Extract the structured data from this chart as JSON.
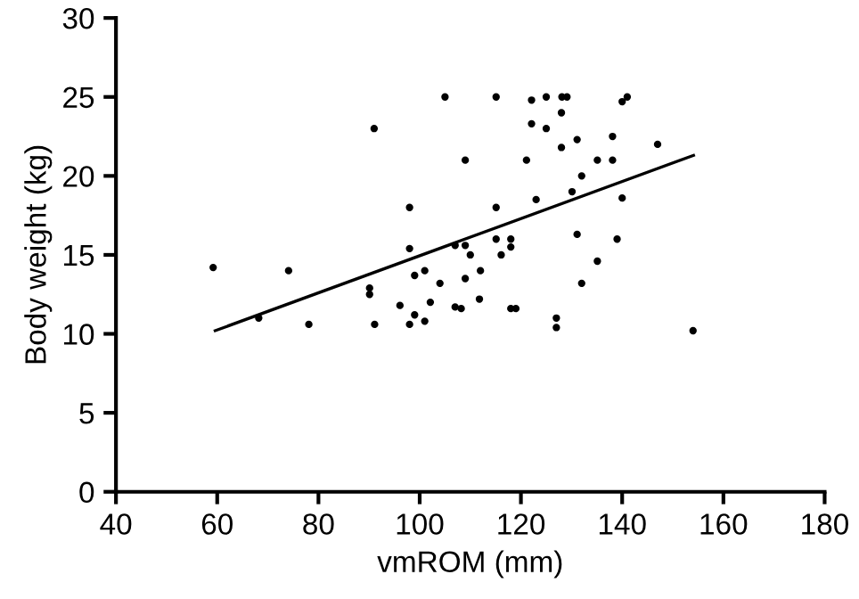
{
  "chart_data": {
    "type": "scatter",
    "xlabel": "vmROM (mm)",
    "ylabel": "Body weight (kg)",
    "xlim": [
      40,
      180
    ],
    "xticks": [
      40,
      60,
      80,
      100,
      120,
      140,
      160,
      180
    ],
    "ylim": [
      0,
      30
    ],
    "yticks": [
      0,
      5,
      10,
      15,
      20,
      25,
      30
    ],
    "grid": false,
    "series": [
      {
        "color": "#000000",
        "marker": "circle",
        "x": [
          59.2,
          74.1,
          91,
          105,
          109,
          98,
          98,
          107,
          109,
          110,
          99,
          101,
          104,
          109,
          112,
          68.2,
          78.1,
          90.1,
          90.1,
          91.1,
          96.1,
          98,
          99,
          101,
          102.1,
          107,
          108.2,
          111.8,
          115.1,
          122.1,
          125,
          128.1,
          129.1,
          128,
          122.1,
          125,
          140,
          141,
          128,
          131.1,
          138.1,
          147,
          121.1,
          135.1,
          138.1,
          132,
          130.1,
          140,
          123,
          115.1,
          115.1,
          118,
          118,
          116.1,
          131.1,
          139,
          135.1,
          132,
          118,
          119,
          127,
          127,
          154
        ],
        "values": [
          14.2,
          14.0,
          23.0,
          25.0,
          21.0,
          18.0,
          15.4,
          15.6,
          15.6,
          15.0,
          13.7,
          14.0,
          13.2,
          13.5,
          14.0,
          11.0,
          10.6,
          12.9,
          12.5,
          10.6,
          11.8,
          10.6,
          11.2,
          10.8,
          12.0,
          11.7,
          11.6,
          12.2,
          25.0,
          24.8,
          25.0,
          25.0,
          25.0,
          24.0,
          23.3,
          23.0,
          24.7,
          25.0,
          21.8,
          22.3,
          22.5,
          22.0,
          21.0,
          21.0,
          21.0,
          20.0,
          19.0,
          18.6,
          18.5,
          18.0,
          16.0,
          16.0,
          15.5,
          15.0,
          16.3,
          16.0,
          14.6,
          13.2,
          11.6,
          11.6,
          11.0,
          10.4,
          10.2
        ]
      },
      {
        "type": "line",
        "color": "#000000",
        "marker": "none",
        "x": [
          59.6,
          154.1
        ],
        "values": [
          10.2,
          21.3
        ]
      }
    ]
  }
}
